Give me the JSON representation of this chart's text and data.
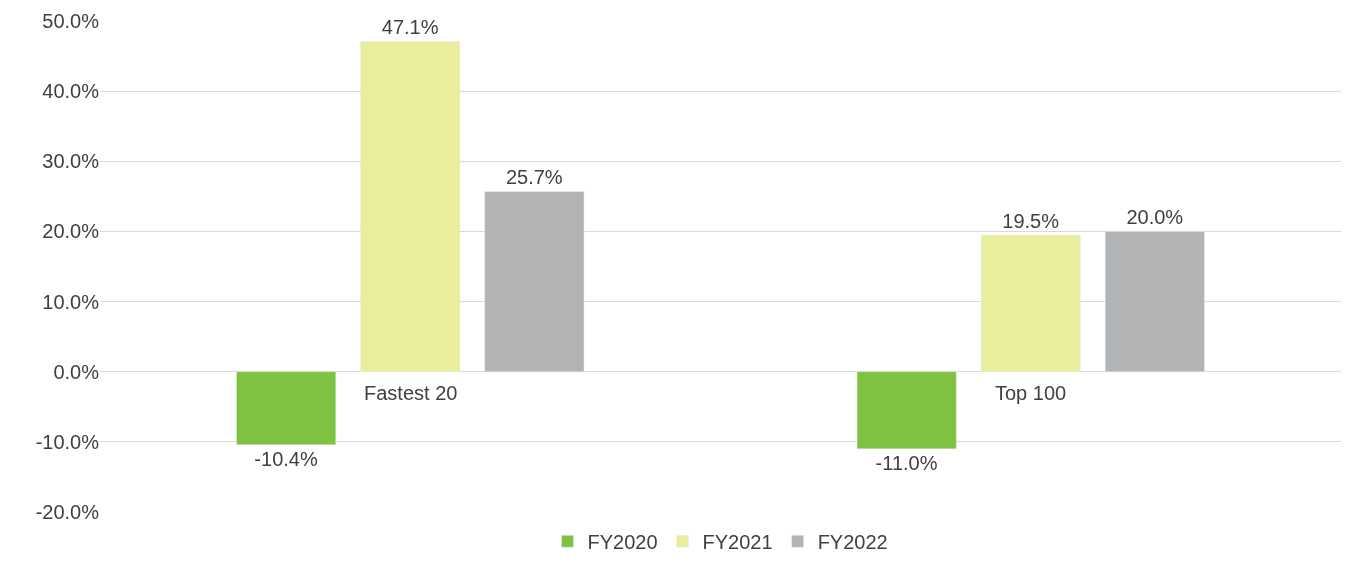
{
  "chart_data": {
    "type": "bar",
    "categories": [
      "Fastest 20",
      "Top 100"
    ],
    "series": [
      {
        "name": "FY2020",
        "color": "#7fc241",
        "values": [
          -10.4,
          -11.0
        ],
        "value_labels": [
          "-10.4%",
          "-11.0%"
        ]
      },
      {
        "name": "FY2021",
        "color": "#e9ed9c",
        "values": [
          47.1,
          19.5
        ],
        "value_labels": [
          "47.1%",
          "19.5%"
        ]
      },
      {
        "name": "FY2022",
        "color": "#b1b3b5",
        "values": [
          25.7,
          20.0
        ],
        "value_labels": [
          "25.7%",
          "20.0%"
        ]
      }
    ],
    "ylim": [
      -20,
      50
    ],
    "yticks": [
      {
        "value": -20,
        "label": "-20.0%"
      },
      {
        "value": -10,
        "label": "-10.0%"
      },
      {
        "value": 0,
        "label": "0.0%"
      },
      {
        "value": 10,
        "label": "10.0%"
      },
      {
        "value": 20,
        "label": "20.0%"
      },
      {
        "value": 30,
        "label": "30.0%"
      },
      {
        "value": 40,
        "label": "40.0%"
      },
      {
        "value": 50,
        "label": "50.0%"
      }
    ],
    "grid": "y",
    "legend": "bottom"
  }
}
